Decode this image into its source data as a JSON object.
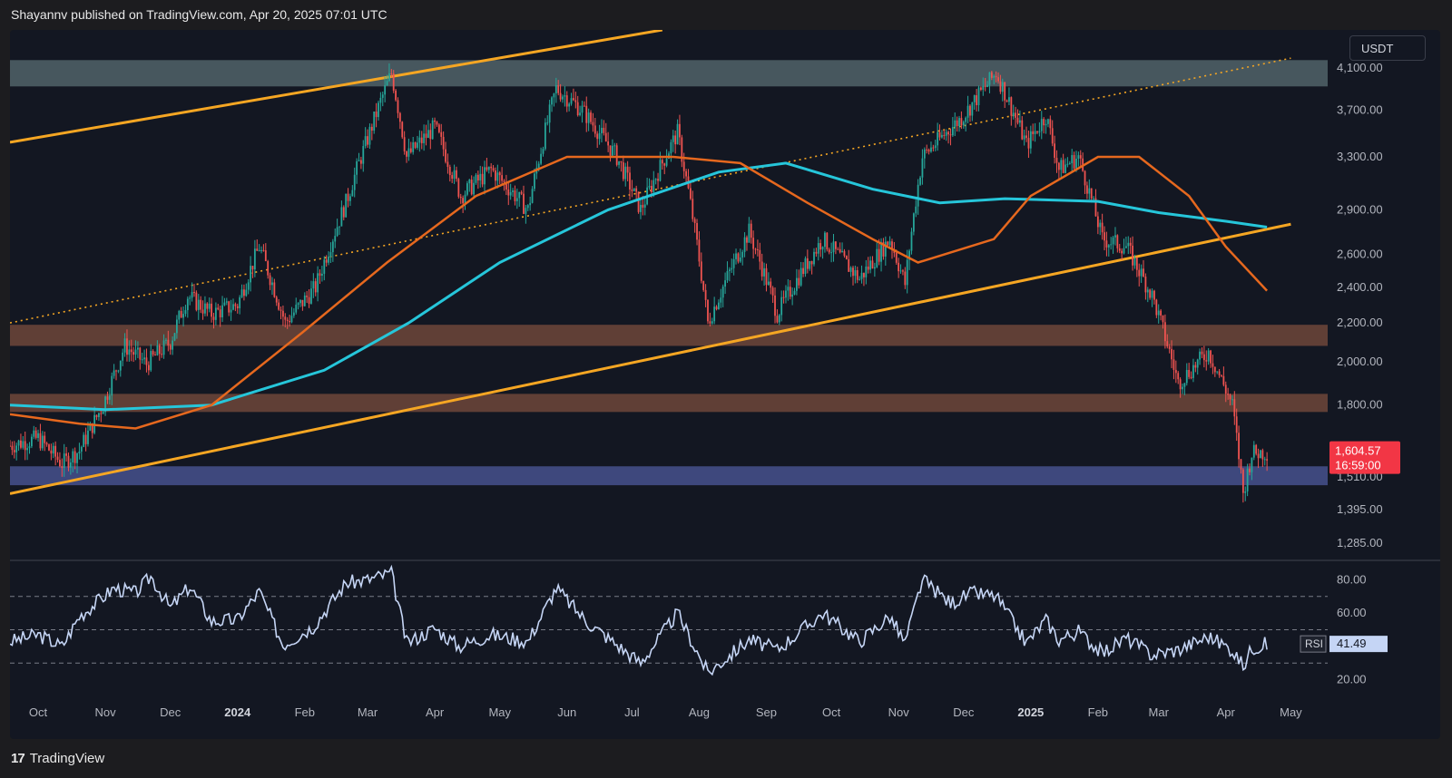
{
  "header": {
    "publisher": "Shayannv published on TradingView.com, Apr 20, 2025 07:01 UTC"
  },
  "footer": {
    "brand": "TradingView",
    "logo_text": "17"
  },
  "currency": "USDT",
  "colors": {
    "up": "#26a69a",
    "down": "#ef5350",
    "ma_orange": "#e6681e",
    "ma_cyan": "#26c6da",
    "channel": "#f5a623",
    "rsi_line": "#c5d5f5",
    "zone_top": "#5a6e73",
    "zone_brown": "#7b4d3e",
    "zone_blue": "#4e5a9c",
    "price_label_bg": "#f23645"
  },
  "chart_data": [
    {
      "type": "line",
      "series_kind": "candlestick",
      "price_axis": {
        "scale": "log",
        "range": [
          1240,
          4500
        ],
        "ticks": [
          "4,100.00",
          "3,700.00",
          "3,300.00",
          "2,900.00",
          "2,600.00",
          "2,400.00",
          "2,200.00",
          "2,000.00",
          "1,800.00",
          "1,600.00",
          "1,510.00",
          "1,395.00",
          "1,285.00"
        ],
        "tick_values": [
          4100,
          3700,
          3300,
          2900,
          2600,
          2400,
          2200,
          2000,
          1800,
          1600,
          1510,
          1395,
          1285
        ]
      },
      "time_axis": {
        "ticks": [
          "Oct",
          "Nov",
          "Dec",
          "2024",
          "Feb",
          "Mar",
          "Apr",
          "May",
          "Jun",
          "Jul",
          "Aug",
          "Sep",
          "Oct",
          "Nov",
          "Dec",
          "2025",
          "Feb",
          "Mar",
          "Apr",
          "May"
        ],
        "bold_ticks": [
          "2024",
          "2025"
        ]
      },
      "price_path": [
        {
          "t": "2023-09-18",
          "v": 1630
        },
        {
          "t": "2023-10-01",
          "v": 1660
        },
        {
          "t": "2023-10-12",
          "v": 1560
        },
        {
          "t": "2023-10-20",
          "v": 1610
        },
        {
          "t": "2023-10-31",
          "v": 1800
        },
        {
          "t": "2023-11-10",
          "v": 2080
        },
        {
          "t": "2023-11-20",
          "v": 1990
        },
        {
          "t": "2023-12-01",
          "v": 2100
        },
        {
          "t": "2023-12-09",
          "v": 2350
        },
        {
          "t": "2023-12-20",
          "v": 2250
        },
        {
          "t": "2024-01-01",
          "v": 2300
        },
        {
          "t": "2024-01-11",
          "v": 2650
        },
        {
          "t": "2024-01-23",
          "v": 2200
        },
        {
          "t": "2024-02-06",
          "v": 2400
        },
        {
          "t": "2024-02-20",
          "v": 2950
        },
        {
          "t": "2024-03-01",
          "v": 3450
        },
        {
          "t": "2024-03-12",
          "v": 4050
        },
        {
          "t": "2024-03-19",
          "v": 3300
        },
        {
          "t": "2024-04-01",
          "v": 3550
        },
        {
          "t": "2024-04-13",
          "v": 3000
        },
        {
          "t": "2024-04-27",
          "v": 3200
        },
        {
          "t": "2024-05-14",
          "v": 2900
        },
        {
          "t": "2024-05-27",
          "v": 3900
        },
        {
          "t": "2024-06-08",
          "v": 3700
        },
        {
          "t": "2024-06-24",
          "v": 3300
        },
        {
          "t": "2024-07-05",
          "v": 2900
        },
        {
          "t": "2024-07-22",
          "v": 3500
        },
        {
          "t": "2024-08-05",
          "v": 2200
        },
        {
          "t": "2024-08-24",
          "v": 2750
        },
        {
          "t": "2024-09-06",
          "v": 2250
        },
        {
          "t": "2024-09-27",
          "v": 2700
        },
        {
          "t": "2024-10-14",
          "v": 2450
        },
        {
          "t": "2024-10-28",
          "v": 2700
        },
        {
          "t": "2024-11-04",
          "v": 2420
        },
        {
          "t": "2024-11-12",
          "v": 3300
        },
        {
          "t": "2024-12-01",
          "v": 3650
        },
        {
          "t": "2024-12-16",
          "v": 4050
        },
        {
          "t": "2024-12-30",
          "v": 3400
        },
        {
          "t": "2025-01-08",
          "v": 3650
        },
        {
          "t": "2025-01-14",
          "v": 3200
        },
        {
          "t": "2025-01-23",
          "v": 3300
        },
        {
          "t": "2025-02-03",
          "v": 2700
        },
        {
          "t": "2025-02-14",
          "v": 2650
        },
        {
          "t": "2025-02-26",
          "v": 2350
        },
        {
          "t": "2025-03-10",
          "v": 1900
        },
        {
          "t": "2025-03-24",
          "v": 2050
        },
        {
          "t": "2025-04-04",
          "v": 1800
        },
        {
          "t": "2025-04-09",
          "v": 1450
        },
        {
          "t": "2025-04-13",
          "v": 1600
        },
        {
          "t": "2025-04-20",
          "v": 1605
        }
      ],
      "ma_200_cyan": [
        {
          "t": "2023-09-18",
          "v": 1800
        },
        {
          "t": "2023-11-01",
          "v": 1780
        },
        {
          "t": "2023-12-20",
          "v": 1800
        },
        {
          "t": "2024-02-10",
          "v": 1960
        },
        {
          "t": "2024-03-20",
          "v": 2200
        },
        {
          "t": "2024-05-01",
          "v": 2550
        },
        {
          "t": "2024-06-20",
          "v": 2900
        },
        {
          "t": "2024-08-10",
          "v": 3180
        },
        {
          "t": "2024-09-10",
          "v": 3250
        },
        {
          "t": "2024-10-20",
          "v": 3050
        },
        {
          "t": "2024-11-20",
          "v": 2950
        },
        {
          "t": "2024-12-20",
          "v": 2980
        },
        {
          "t": "2025-02-01",
          "v": 2960
        },
        {
          "t": "2025-03-01",
          "v": 2880
        },
        {
          "t": "2025-04-01",
          "v": 2820
        },
        {
          "t": "2025-04-20",
          "v": 2780
        }
      ],
      "ma_100_orange": [
        {
          "t": "2023-09-18",
          "v": 1760
        },
        {
          "t": "2023-10-20",
          "v": 1720
        },
        {
          "t": "2023-11-15",
          "v": 1700
        },
        {
          "t": "2023-12-20",
          "v": 1800
        },
        {
          "t": "2024-01-31",
          "v": 2150
        },
        {
          "t": "2024-03-10",
          "v": 2550
        },
        {
          "t": "2024-04-20",
          "v": 3000
        },
        {
          "t": "2024-06-01",
          "v": 3300
        },
        {
          "t": "2024-07-20",
          "v": 3300
        },
        {
          "t": "2024-08-20",
          "v": 3250
        },
        {
          "t": "2024-09-20",
          "v": 2950
        },
        {
          "t": "2024-10-20",
          "v": 2700
        },
        {
          "t": "2024-11-10",
          "v": 2550
        },
        {
          "t": "2024-12-15",
          "v": 2700
        },
        {
          "t": "2025-01-01",
          "v": 3000
        },
        {
          "t": "2025-02-01",
          "v": 3300
        },
        {
          "t": "2025-02-20",
          "v": 3300
        },
        {
          "t": "2025-03-15",
          "v": 3000
        },
        {
          "t": "2025-04-01",
          "v": 2650
        },
        {
          "t": "2025-04-20",
          "v": 2380
        }
      ],
      "channel_lines": [
        {
          "name": "upper",
          "from": {
            "t": "2023-09-18",
            "v": 3420
          },
          "to": {
            "t": "2024-07-15",
            "v": 4500
          },
          "style": "solid"
        },
        {
          "name": "mid",
          "from": {
            "t": "2023-09-18",
            "v": 2200
          },
          "to": {
            "t": "2025-05-01",
            "v": 4200
          },
          "style": "dotted"
        },
        {
          "name": "lower",
          "from": {
            "t": "2023-09-18",
            "v": 1450
          },
          "to": {
            "t": "2025-05-01",
            "v": 2800
          },
          "style": "solid"
        }
      ],
      "zones": [
        {
          "name": "resistance-4100",
          "from": 3920,
          "to": 4180,
          "color": "zone_top"
        },
        {
          "name": "support-2150",
          "from": 2080,
          "to": 2190,
          "color": "zone_brown"
        },
        {
          "name": "support-1800",
          "from": 1770,
          "to": 1850,
          "color": "zone_brown"
        },
        {
          "name": "support-1540",
          "from": 1480,
          "to": 1550,
          "color": "zone_blue"
        }
      ],
      "last_price": {
        "value": "1,604.57",
        "countdown": "16:59:00"
      }
    },
    {
      "type": "line",
      "series_kind": "rsi",
      "ylim": [
        10,
        90
      ],
      "levels": [
        70,
        50,
        30
      ],
      "ticks": [
        "80.00",
        "60.00",
        "20.00"
      ],
      "tick_values": [
        80,
        60,
        20
      ],
      "label": "RSI",
      "last_value": "41.49",
      "rsi_path": [
        {
          "t": "2023-09-18",
          "v": 43
        },
        {
          "t": "2023-10-01",
          "v": 47
        },
        {
          "t": "2023-10-12",
          "v": 40
        },
        {
          "t": "2023-10-20",
          "v": 58
        },
        {
          "t": "2023-11-05",
          "v": 75
        },
        {
          "t": "2023-11-15",
          "v": 72
        },
        {
          "t": "2023-11-22",
          "v": 82
        },
        {
          "t": "2023-12-01",
          "v": 63
        },
        {
          "t": "2023-12-10",
          "v": 76
        },
        {
          "t": "2023-12-20",
          "v": 55
        },
        {
          "t": "2024-01-01",
          "v": 56
        },
        {
          "t": "2024-01-11",
          "v": 73
        },
        {
          "t": "2024-01-22",
          "v": 41
        },
        {
          "t": "2024-02-05",
          "v": 52
        },
        {
          "t": "2024-02-20",
          "v": 78
        },
        {
          "t": "2024-03-01",
          "v": 80
        },
        {
          "t": "2024-03-12",
          "v": 84
        },
        {
          "t": "2024-03-19",
          "v": 42
        },
        {
          "t": "2024-04-01",
          "v": 51
        },
        {
          "t": "2024-04-12",
          "v": 40
        },
        {
          "t": "2024-04-27",
          "v": 47
        },
        {
          "t": "2024-05-14",
          "v": 43
        },
        {
          "t": "2024-05-27",
          "v": 75
        },
        {
          "t": "2024-06-10",
          "v": 55
        },
        {
          "t": "2024-06-24",
          "v": 41
        },
        {
          "t": "2024-07-05",
          "v": 30
        },
        {
          "t": "2024-07-22",
          "v": 60
        },
        {
          "t": "2024-08-05",
          "v": 24
        },
        {
          "t": "2024-08-24",
          "v": 44
        },
        {
          "t": "2024-09-06",
          "v": 38
        },
        {
          "t": "2024-09-27",
          "v": 60
        },
        {
          "t": "2024-10-14",
          "v": 43
        },
        {
          "t": "2024-10-28",
          "v": 58
        },
        {
          "t": "2024-11-04",
          "v": 42
        },
        {
          "t": "2024-11-12",
          "v": 80
        },
        {
          "t": "2024-11-25",
          "v": 66
        },
        {
          "t": "2024-12-05",
          "v": 72
        },
        {
          "t": "2024-12-16",
          "v": 70
        },
        {
          "t": "2024-12-30",
          "v": 42
        },
        {
          "t": "2025-01-08",
          "v": 56
        },
        {
          "t": "2025-01-14",
          "v": 44
        },
        {
          "t": "2025-01-23",
          "v": 49
        },
        {
          "t": "2025-02-03",
          "v": 36
        },
        {
          "t": "2025-02-14",
          "v": 45
        },
        {
          "t": "2025-02-26",
          "v": 35
        },
        {
          "t": "2025-03-10",
          "v": 38
        },
        {
          "t": "2025-03-24",
          "v": 46
        },
        {
          "t": "2025-04-04",
          "v": 38
        },
        {
          "t": "2025-04-09",
          "v": 28
        },
        {
          "t": "2025-04-13",
          "v": 39
        },
        {
          "t": "2025-04-20",
          "v": 41.5
        }
      ]
    }
  ]
}
